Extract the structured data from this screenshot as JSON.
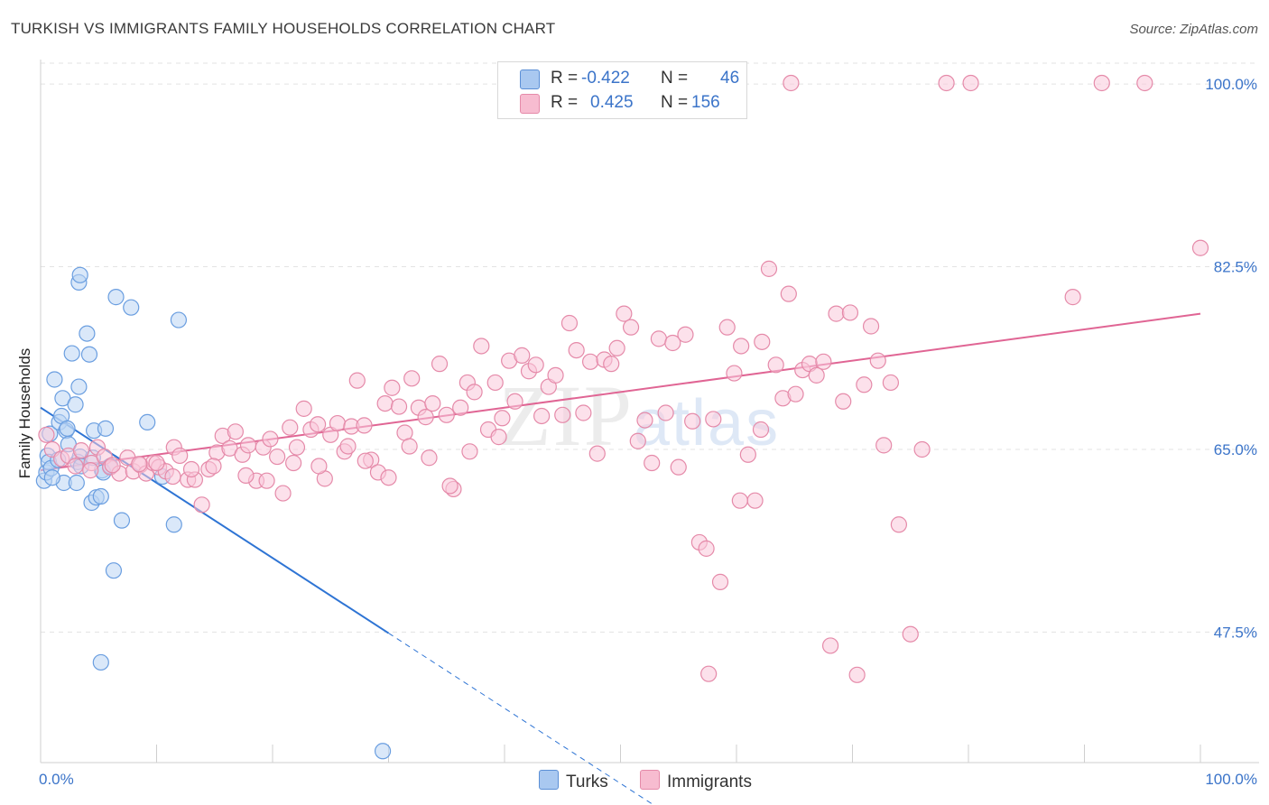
{
  "title": "TURKISH VS IMMIGRANTS FAMILY HOUSEHOLDS CORRELATION CHART",
  "source": "Source: ZipAtlas.com",
  "watermark": {
    "zip": "ZIP",
    "atlas": "atlas"
  },
  "legend": {
    "r_label": "R =",
    "n_label": "N =",
    "rows": [
      {
        "name": "Turks",
        "r": "-0.422",
        "n": "46",
        "color": "#a9c8f0",
        "border": "#5b8fd6"
      },
      {
        "name": "Immigrants",
        "r": "0.425",
        "n": "156",
        "color": "#f7bcd0",
        "border": "#e58aa9"
      }
    ]
  },
  "chart_data": {
    "type": "scatter",
    "title": "TURKISH VS IMMIGRANTS FAMILY HOUSEHOLDS CORRELATION CHART",
    "xlabel": "",
    "ylabel": "Family Households",
    "xlim": [
      0,
      100
    ],
    "ylim": [
      35,
      102
    ],
    "x_tick_labels": [
      "0.0%",
      "100.0%"
    ],
    "y_ticks": [
      47.5,
      65.0,
      82.5,
      100.0
    ],
    "y_tick_labels": [
      "47.5%",
      "65.0%",
      "82.5%",
      "100.0%"
    ],
    "series": [
      {
        "name": "Turks",
        "color": "#6a9ee0",
        "fill": "#bcd5f4",
        "trend": {
          "x0": 0,
          "y0": 69.0,
          "x1": 30,
          "y1": 47.4,
          "dashed_to_x": 55
        },
        "points": [
          [
            0.3,
            62.0
          ],
          [
            0.5,
            62.8
          ],
          [
            0.6,
            64.4
          ],
          [
            0.7,
            63.8
          ],
          [
            0.8,
            66.5
          ],
          [
            0.9,
            63.2
          ],
          [
            1.2,
            71.7
          ],
          [
            1.5,
            64.0
          ],
          [
            1.6,
            67.6
          ],
          [
            1.8,
            68.2
          ],
          [
            1.9,
            69.9
          ],
          [
            2.0,
            61.8
          ],
          [
            2.2,
            66.8
          ],
          [
            2.4,
            65.5
          ],
          [
            2.7,
            74.2
          ],
          [
            3.0,
            69.3
          ],
          [
            3.1,
            61.8
          ],
          [
            3.2,
            63.8
          ],
          [
            3.3,
            71.0
          ],
          [
            3.4,
            64.3
          ],
          [
            3.5,
            63.4
          ],
          [
            4.0,
            76.1
          ],
          [
            4.2,
            74.1
          ],
          [
            4.4,
            59.9
          ],
          [
            4.6,
            66.8
          ],
          [
            4.8,
            60.4
          ],
          [
            5.2,
            60.5
          ],
          [
            5.3,
            63.0
          ],
          [
            5.4,
            62.8
          ],
          [
            5.6,
            67.0
          ],
          [
            3.3,
            81.0
          ],
          [
            3.4,
            81.7
          ],
          [
            6.3,
            53.4
          ],
          [
            6.5,
            79.6
          ],
          [
            7.0,
            58.2
          ],
          [
            7.8,
            78.6
          ],
          [
            9.2,
            67.6
          ],
          [
            10.5,
            62.4
          ],
          [
            11.5,
            57.8
          ],
          [
            11.9,
            77.4
          ],
          [
            5.2,
            44.6
          ],
          [
            29.5,
            36.1
          ],
          [
            1.0,
            62.3
          ],
          [
            2.3,
            67.0
          ],
          [
            4.5,
            64.2
          ],
          [
            6.0,
            63.4
          ]
        ]
      },
      {
        "name": "Immigrants",
        "color": "#e58aa9",
        "fill": "#f9c9da",
        "trend": {
          "x0": 0,
          "y0": 63.0,
          "x1": 100,
          "y1": 78.0
        },
        "points": [
          [
            0.5,
            66.4
          ],
          [
            1.0,
            65.0
          ],
          [
            1.8,
            64.1
          ],
          [
            2.4,
            64.4
          ],
          [
            3.0,
            63.4
          ],
          [
            3.5,
            64.9
          ],
          [
            4.4,
            63.7
          ],
          [
            4.9,
            65.2
          ],
          [
            5.5,
            64.3
          ],
          [
            6.0,
            63.3
          ],
          [
            6.8,
            62.7
          ],
          [
            7.5,
            64.2
          ],
          [
            8.0,
            62.9
          ],
          [
            8.6,
            63.5
          ],
          [
            9.1,
            62.7
          ],
          [
            9.7,
            63.7
          ],
          [
            10.2,
            63.3
          ],
          [
            10.8,
            62.9
          ],
          [
            11.5,
            65.2
          ],
          [
            12.0,
            64.4
          ],
          [
            12.7,
            62.1
          ],
          [
            13.3,
            62.1
          ],
          [
            13.9,
            59.7
          ],
          [
            14.5,
            63.1
          ],
          [
            15.2,
            64.7
          ],
          [
            15.7,
            66.3
          ],
          [
            16.3,
            65.1
          ],
          [
            16.8,
            66.7
          ],
          [
            17.4,
            64.5
          ],
          [
            17.9,
            65.4
          ],
          [
            18.6,
            62.0
          ],
          [
            19.2,
            65.2
          ],
          [
            19.8,
            66.0
          ],
          [
            20.4,
            64.3
          ],
          [
            20.9,
            60.8
          ],
          [
            21.5,
            67.1
          ],
          [
            22.1,
            65.2
          ],
          [
            22.7,
            68.9
          ],
          [
            23.3,
            66.9
          ],
          [
            23.9,
            67.4
          ],
          [
            24.5,
            62.2
          ],
          [
            25.0,
            66.4
          ],
          [
            25.6,
            67.5
          ],
          [
            26.2,
            64.8
          ],
          [
            26.8,
            67.2
          ],
          [
            27.3,
            71.6
          ],
          [
            27.9,
            67.3
          ],
          [
            28.5,
            64.0
          ],
          [
            29.1,
            62.8
          ],
          [
            29.7,
            69.4
          ],
          [
            30.3,
            70.9
          ],
          [
            30.9,
            69.1
          ],
          [
            31.4,
            66.6
          ],
          [
            32.0,
            71.8
          ],
          [
            32.6,
            69.0
          ],
          [
            33.2,
            68.1
          ],
          [
            33.8,
            69.4
          ],
          [
            34.4,
            73.2
          ],
          [
            35.0,
            68.3
          ],
          [
            35.6,
            61.2
          ],
          [
            36.2,
            69.0
          ],
          [
            36.8,
            71.4
          ],
          [
            37.4,
            70.5
          ],
          [
            38.0,
            74.9
          ],
          [
            38.6,
            66.9
          ],
          [
            39.2,
            71.4
          ],
          [
            39.8,
            68.0
          ],
          [
            40.4,
            73.5
          ],
          [
            40.9,
            69.6
          ],
          [
            41.5,
            74.0
          ],
          [
            42.1,
            72.5
          ],
          [
            42.7,
            73.1
          ],
          [
            43.2,
            68.2
          ],
          [
            43.8,
            71.0
          ],
          [
            44.4,
            72.1
          ],
          [
            45.0,
            68.3
          ],
          [
            45.6,
            77.1
          ],
          [
            46.2,
            74.5
          ],
          [
            46.8,
            68.5
          ],
          [
            47.4,
            73.4
          ],
          [
            48.0,
            64.6
          ],
          [
            48.6,
            73.6
          ],
          [
            49.2,
            73.2
          ],
          [
            49.7,
            74.7
          ],
          [
            50.3,
            78.0
          ],
          [
            50.9,
            76.7
          ],
          [
            51.5,
            65.8
          ],
          [
            52.1,
            67.8
          ],
          [
            52.7,
            63.7
          ],
          [
            53.3,
            75.6
          ],
          [
            53.9,
            68.5
          ],
          [
            54.5,
            75.2
          ],
          [
            55.0,
            63.3
          ],
          [
            55.6,
            76.0
          ],
          [
            56.2,
            67.7
          ],
          [
            56.8,
            56.1
          ],
          [
            57.4,
            55.5
          ],
          [
            58.0,
            67.9
          ],
          [
            58.6,
            52.3
          ],
          [
            59.2,
            76.7
          ],
          [
            59.8,
            72.3
          ],
          [
            60.4,
            74.9
          ],
          [
            61.0,
            64.5
          ],
          [
            61.6,
            60.1
          ],
          [
            62.2,
            75.3
          ],
          [
            62.8,
            82.3
          ],
          [
            63.4,
            73.1
          ],
          [
            64.0,
            69.9
          ],
          [
            64.5,
            79.9
          ],
          [
            65.1,
            70.3
          ],
          [
            65.7,
            72.6
          ],
          [
            66.3,
            73.2
          ],
          [
            66.9,
            72.1
          ],
          [
            67.5,
            73.4
          ],
          [
            68.1,
            46.2
          ],
          [
            68.6,
            78.0
          ],
          [
            69.2,
            69.6
          ],
          [
            69.8,
            78.1
          ],
          [
            70.4,
            43.4
          ],
          [
            71.0,
            71.2
          ],
          [
            71.6,
            76.8
          ],
          [
            72.2,
            73.5
          ],
          [
            72.7,
            65.4
          ],
          [
            73.3,
            71.4
          ],
          [
            74.0,
            57.8
          ],
          [
            75.0,
            47.3
          ],
          [
            76.0,
            65.0
          ],
          [
            57.6,
            43.5
          ],
          [
            60.3,
            60.1
          ],
          [
            62.1,
            66.9
          ],
          [
            64.7,
            100.1
          ],
          [
            78.1,
            100.1
          ],
          [
            80.2,
            100.1
          ],
          [
            91.5,
            100.1
          ],
          [
            95.2,
            100.1
          ],
          [
            89.0,
            79.6
          ],
          [
            100.0,
            84.3
          ],
          [
            4.3,
            63.0
          ],
          [
            6.2,
            63.5
          ],
          [
            8.5,
            63.6
          ],
          [
            10.0,
            63.7
          ],
          [
            11.4,
            62.4
          ],
          [
            13.0,
            63.1
          ],
          [
            14.9,
            63.4
          ],
          [
            17.7,
            62.5
          ],
          [
            19.5,
            62.0
          ],
          [
            21.8,
            63.7
          ],
          [
            24.0,
            63.4
          ],
          [
            26.5,
            65.3
          ],
          [
            28.0,
            63.9
          ],
          [
            30.0,
            62.3
          ],
          [
            31.8,
            65.3
          ],
          [
            33.5,
            64.2
          ],
          [
            35.3,
            61.5
          ],
          [
            37.0,
            64.8
          ],
          [
            39.5,
            66.2
          ]
        ]
      }
    ]
  }
}
